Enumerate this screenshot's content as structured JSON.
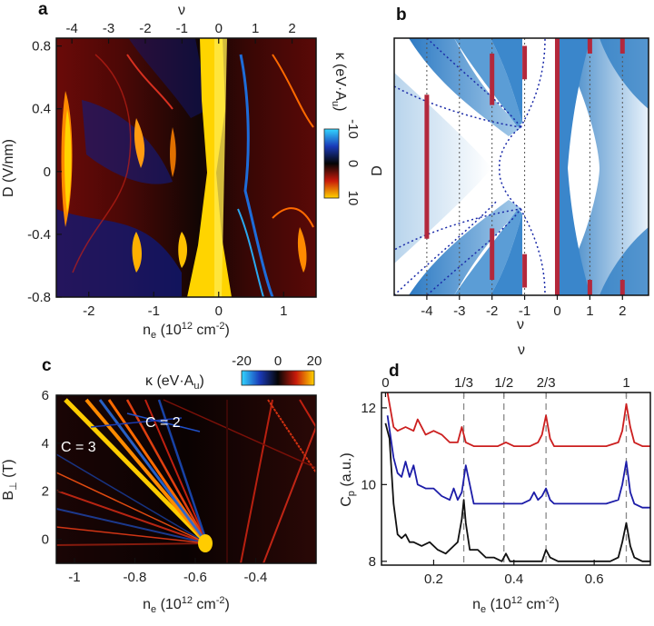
{
  "panels": {
    "a": {
      "label": "a",
      "top_axis_label": "ν",
      "top_ticks": [
        "-4",
        "-3",
        "-2",
        "-1",
        "0",
        "1",
        "2"
      ],
      "x_ticks": [
        "-2",
        "-1",
        "0",
        "1"
      ],
      "y_ticks": [
        "0.8",
        "0.4",
        "0",
        "-0.4",
        "-0.8"
      ],
      "xlabel_main": "n",
      "xlabel_sub": "e",
      "xlabel_rest": " (10",
      "xlabel_sup": "12",
      "xlabel_unit": " cm",
      "xlabel_sup2": "-2",
      "xlabel_end": ")",
      "ylabel": "D (V/nm)",
      "colorbar_label": "κ (eV·A",
      "colorbar_label_sub": "u",
      "colorbar_label_end": ")",
      "colorbar_ticks": [
        "-10",
        "0",
        "10"
      ]
    },
    "b": {
      "label": "b",
      "x_ticks": [
        "-4",
        "-3",
        "-2",
        "-1",
        "0",
        "1",
        "2"
      ],
      "xlabel": "ν",
      "ylabel": "D"
    },
    "c": {
      "label": "c",
      "colorbar_label": "κ (eV·A",
      "colorbar_label_sub": "u",
      "colorbar_label_end": ")",
      "colorbar_ticks": [
        "-20",
        "0",
        "20"
      ],
      "x_ticks": [
        "-1",
        "-0.8",
        "-0.6",
        "-0.4"
      ],
      "y_ticks": [
        "6",
        "4",
        "2",
        "0"
      ],
      "xlabel_main": "n",
      "xlabel_sub": "e",
      "xlabel_rest": " (10",
      "xlabel_sup": "12",
      "xlabel_unit": " cm",
      "xlabel_sup2": "-2",
      "xlabel_end": ")",
      "ylabel_main": "B",
      "ylabel_sub": "⊥",
      "ylabel_end": " (T)",
      "annotations": [
        "C = 3",
        "C = 2"
      ]
    },
    "d": {
      "label": "d",
      "top_axis_label": "ν",
      "top_ticks": [
        "0",
        "1/3",
        "1/2",
        "2/3",
        "1"
      ],
      "x_ticks": [
        "0.2",
        "0.4",
        "0.6"
      ],
      "y_ticks": [
        "12",
        "10",
        "8"
      ],
      "xlabel_main": "n",
      "xlabel_sub": "e",
      "xlabel_rest": " (10",
      "xlabel_sup": "12",
      "xlabel_unit": " cm",
      "xlabel_sup2": "-2",
      "xlabel_end": ")",
      "ylabel_main": "C",
      "ylabel_sub": "p",
      "ylabel_end": " (a.u.)"
    }
  },
  "colors": {
    "red_trace": "#cc1f1f",
    "blue_trace": "#1c1ca8",
    "black_trace": "#111111",
    "line_marker": "#b3283c",
    "dotted_blue": "#1a2aa8"
  },
  "chart_data": [
    {
      "panel": "a",
      "type": "heatmap",
      "x_range": [
        -2.5,
        1.5
      ],
      "y_range": [
        -0.8,
        0.85
      ],
      "top_axis_nu_ticks": [
        -4,
        -3,
        -2,
        -1,
        0,
        1,
        2
      ],
      "colorbar_range": [
        -10,
        10
      ]
    },
    {
      "panel": "b",
      "type": "area",
      "x_range": [
        -5,
        2.8
      ],
      "nu_lines": [
        -4,
        -3,
        -2,
        -1,
        0,
        1,
        2
      ],
      "red_markers_nu": [
        -4,
        -2,
        -2,
        -1,
        -1,
        0,
        1,
        1,
        2,
        2
      ]
    },
    {
      "panel": "c",
      "type": "heatmap",
      "x_range": [
        -1.06,
        -0.2
      ],
      "y_range": [
        -1,
        6
      ],
      "colorbar_range": [
        -20,
        20
      ],
      "annotations": [
        {
          "text": "C = 3",
          "x": -1.0,
          "y": 3.9
        },
        {
          "text": "C = 2",
          "x": -0.82,
          "y": 4.8
        }
      ]
    },
    {
      "panel": "d",
      "type": "line",
      "xlim": [
        0.07,
        0.74
      ],
      "ylim": [
        7.9,
        12.4
      ],
      "nu_marker_x": [
        0.275,
        0.375,
        0.48,
        0.68
      ],
      "series": [
        {
          "color": "#cc1f1f",
          "x": [
            0.085,
            0.1,
            0.11,
            0.13,
            0.15,
            0.16,
            0.18,
            0.2,
            0.22,
            0.24,
            0.26,
            0.27,
            0.28,
            0.3,
            0.33,
            0.36,
            0.38,
            0.4,
            0.42,
            0.44,
            0.46,
            0.47,
            0.48,
            0.49,
            0.5,
            0.53,
            0.56,
            0.6,
            0.63,
            0.66,
            0.67,
            0.68,
            0.69,
            0.7,
            0.72,
            0.74
          ],
          "y": [
            12.4,
            11.5,
            11.4,
            11.5,
            11.4,
            11.7,
            11.3,
            11.4,
            11.3,
            11.1,
            11.1,
            11.5,
            11.1,
            11.0,
            11.0,
            11.0,
            11.1,
            11.0,
            11.0,
            11.0,
            11.1,
            11.3,
            11.8,
            11.2,
            11.0,
            11.0,
            11.0,
            11.0,
            11.0,
            11.1,
            11.4,
            12.1,
            11.5,
            11.1,
            11.0,
            11.0
          ]
        },
        {
          "color": "#1c1ca8",
          "x": [
            0.085,
            0.1,
            0.11,
            0.12,
            0.13,
            0.14,
            0.15,
            0.16,
            0.18,
            0.2,
            0.22,
            0.24,
            0.25,
            0.26,
            0.27,
            0.28,
            0.3,
            0.33,
            0.36,
            0.38,
            0.4,
            0.42,
            0.44,
            0.45,
            0.46,
            0.47,
            0.48,
            0.49,
            0.5,
            0.53,
            0.56,
            0.6,
            0.63,
            0.66,
            0.67,
            0.68,
            0.69,
            0.7,
            0.72,
            0.74
          ],
          "y": [
            11.8,
            10.7,
            10.3,
            10.2,
            10.6,
            10.2,
            10.5,
            10.0,
            9.9,
            9.9,
            9.7,
            9.6,
            9.9,
            9.6,
            9.8,
            10.5,
            9.5,
            9.5,
            9.5,
            9.5,
            9.5,
            9.5,
            9.6,
            9.8,
            9.6,
            9.7,
            9.9,
            9.6,
            9.5,
            9.5,
            9.5,
            9.5,
            9.5,
            9.6,
            10.0,
            10.6,
            9.8,
            9.5,
            9.4,
            9.4
          ]
        },
        {
          "color": "#111111",
          "x": [
            0.08,
            0.09,
            0.1,
            0.11,
            0.12,
            0.13,
            0.14,
            0.15,
            0.17,
            0.19,
            0.21,
            0.23,
            0.25,
            0.26,
            0.27,
            0.275,
            0.28,
            0.29,
            0.31,
            0.33,
            0.35,
            0.37,
            0.38,
            0.39,
            0.41,
            0.43,
            0.45,
            0.47,
            0.48,
            0.49,
            0.51,
            0.55,
            0.6,
            0.64,
            0.66,
            0.67,
            0.68,
            0.69,
            0.7,
            0.72,
            0.74
          ],
          "y": [
            11.6,
            11.2,
            9.5,
            8.7,
            8.6,
            8.7,
            8.5,
            8.5,
            8.4,
            8.5,
            8.3,
            8.2,
            8.4,
            8.5,
            9.1,
            9.6,
            9.0,
            8.3,
            8.3,
            8.1,
            8.1,
            8.0,
            8.2,
            8.0,
            8.0,
            8.0,
            8.0,
            8.0,
            8.3,
            8.1,
            8.0,
            8.0,
            8.0,
            8.0,
            8.1,
            8.5,
            9.0,
            8.4,
            8.1,
            8.0,
            8.0
          ]
        }
      ]
    }
  ]
}
